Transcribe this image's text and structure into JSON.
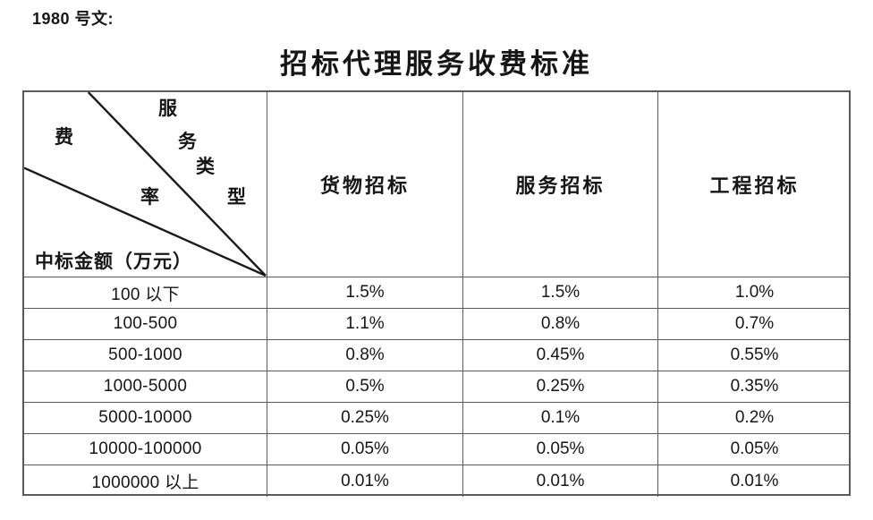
{
  "doc_ref": "1980 号文:",
  "title": "招标代理服务收费标准",
  "table": {
    "corner": {
      "type_axis_chars": [
        "服",
        "务",
        "类",
        "型"
      ],
      "rate_axis_chars": [
        "费",
        "率"
      ],
      "row_axis_label": "中标金额（万元）"
    },
    "col_headers": [
      "货物招标",
      "服务招标",
      "工程招标"
    ],
    "rows": [
      {
        "amount": "100 以下",
        "goods": "1.5%",
        "services": "1.5%",
        "works": "1.0%"
      },
      {
        "amount": "100-500",
        "goods": "1.1%",
        "services": "0.8%",
        "works": "0.7%"
      },
      {
        "amount": "500-1000",
        "goods": "0.8%",
        "services": "0.45%",
        "works": "0.55%"
      },
      {
        "amount": "1000-5000",
        "goods": "0.5%",
        "services": "0.25%",
        "works": "0.35%"
      },
      {
        "amount": "5000-10000",
        "goods": "0.25%",
        "services": "0.1%",
        "works": "0.2%"
      },
      {
        "amount": "10000-100000",
        "goods": "0.05%",
        "services": "0.05%",
        "works": "0.05%"
      },
      {
        "amount": "1000000 以上",
        "goods": "0.01%",
        "services": "0.01%",
        "works": "0.01%"
      }
    ],
    "line_color": "#1a1a1a",
    "border_color": "#5a5a5a"
  }
}
